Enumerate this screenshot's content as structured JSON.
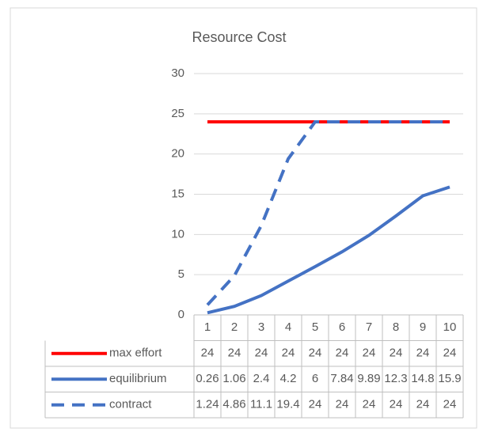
{
  "chart_data": {
    "type": "line",
    "title": "Resource Cost",
    "categories": [
      "1",
      "2",
      "3",
      "4",
      "5",
      "6",
      "7",
      "8",
      "9",
      "10"
    ],
    "series": [
      {
        "name": "max effort",
        "color": "#ff0000",
        "line_style": "solid",
        "values": [
          24,
          24,
          24,
          24,
          24,
          24,
          24,
          24,
          24,
          24
        ]
      },
      {
        "name": "equilibrium",
        "color": "#4472c4",
        "line_style": "solid",
        "values": [
          0.26,
          1.06,
          2.4,
          4.2,
          6,
          7.84,
          9.89,
          12.3,
          14.8,
          15.9
        ]
      },
      {
        "name": "contract",
        "color": "#4472c4",
        "line_style": "dashed",
        "values": [
          1.24,
          4.86,
          11.1,
          19.4,
          24,
          24,
          24,
          24,
          24,
          24
        ]
      }
    ],
    "ylim": [
      0,
      30
    ],
    "yticks": [
      0,
      5,
      10,
      15,
      20,
      25,
      30
    ],
    "grid": true,
    "data_table": true
  }
}
